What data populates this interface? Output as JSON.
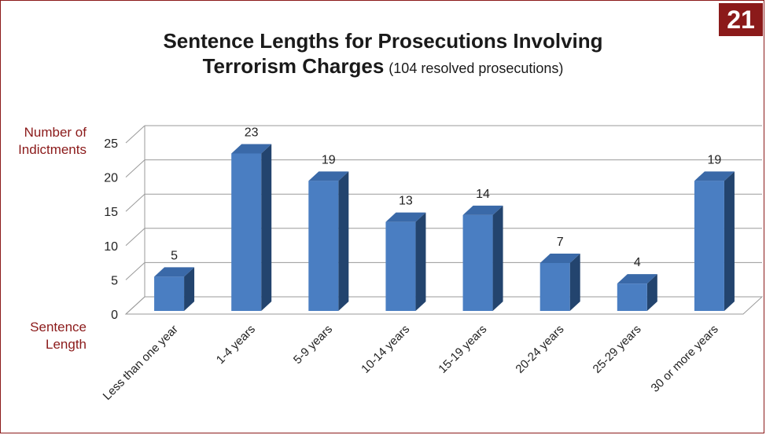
{
  "badge": "21",
  "title_line1": "Sentence Lengths for Prosecutions Involving",
  "title_line2_bold": "Terrorism Charges",
  "title_line2_sub": "(104 resolved prosecutions)",
  "ylabel_line1": "Number of",
  "ylabel_line2": "Indictments",
  "xlabel_line1": "Sentence",
  "xlabel_line2": "Length",
  "colors": {
    "bar_front": "#4a7ec2",
    "bar_side": "#23446e",
    "bar_top": "#3a69a8",
    "frame": "#8b1a1a",
    "label_red": "#8b1a1a"
  },
  "chart_data": {
    "type": "bar",
    "categories": [
      "Less than one year",
      "1-4 years",
      "5-9 years",
      "10-14 years",
      "15-19 years",
      "20-24 years",
      "25-29 years",
      "30 or more years"
    ],
    "values": [
      5,
      23,
      19,
      13,
      14,
      7,
      4,
      19
    ],
    "data_labels": [
      "5",
      "23",
      "19",
      "13",
      "14",
      "7",
      "4",
      "19"
    ],
    "yticks": [
      0,
      5,
      10,
      15,
      20,
      25
    ],
    "ylim": [
      0,
      25
    ],
    "grid": true
  }
}
